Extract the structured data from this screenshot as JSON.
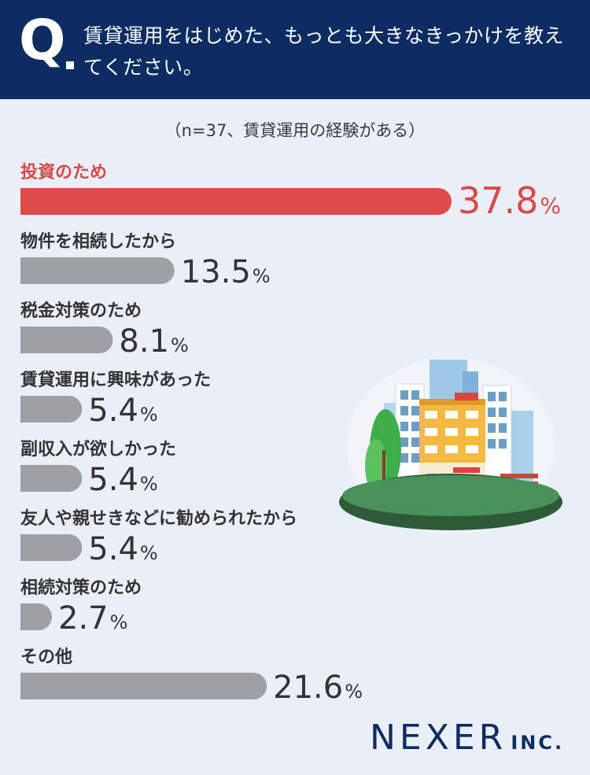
{
  "header": {
    "q_letter": "Q",
    "question": "賃貸運用をはじめた、もっとも大きなきっかけを教えてください。"
  },
  "subtitle": "（n=37、賃貸運用の経験がある）",
  "chart_data": {
    "type": "bar",
    "orientation": "horizontal",
    "categories": [
      "投資のため",
      "物件を相続したから",
      "税金対策のため",
      "賃貸運用に興味があった",
      "副収入が欲しかった",
      "友人や親せきなどに勧められたから",
      "相続対策のため",
      "その他"
    ],
    "values": [
      37.8,
      13.5,
      8.1,
      5.4,
      5.4,
      5.4,
      2.7,
      21.6
    ],
    "unit": "%",
    "highlight_index": 0,
    "colors": {
      "highlight": "#dd4b4b",
      "default": "#9fa0a5",
      "label": "#333333",
      "highlight_label": "#d9484b"
    }
  },
  "logo": {
    "main": "NEXER",
    "suffix": "INC."
  }
}
